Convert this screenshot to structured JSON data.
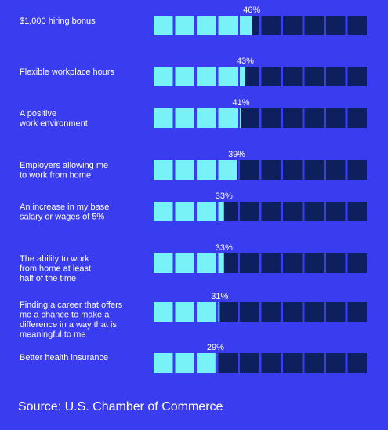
{
  "chart_data": {
    "type": "bar",
    "categories": [
      [
        "$1,000 hiring bonus"
      ],
      [
        "Flexible workplace hours"
      ],
      [
        "A positive",
        "work environment"
      ],
      [
        "Employers allowing me",
        "to work from home"
      ],
      [
        "An increase in my base",
        "salary or wages of 5%"
      ],
      [
        "The ability to work",
        "from home at least",
        "half of the time"
      ],
      [
        "Finding a career that offers",
        "me a chance to make a",
        "difference in a way that is",
        "meaningful to me"
      ],
      [
        "Better health insurance"
      ]
    ],
    "values": [
      46,
      43,
      41,
      39,
      33,
      33,
      31,
      29
    ],
    "value_labels": [
      "46%",
      "43%",
      "41%",
      "39%",
      "33%",
      "33%",
      "31%",
      "29%"
    ],
    "xlim": [
      0,
      100
    ],
    "segments": 10,
    "colors": {
      "filled": "#78f2f7",
      "empty": "#0d1f5c",
      "background": "#3a3cf0"
    }
  },
  "source": "Source: U.S. Chamber of Commerce"
}
